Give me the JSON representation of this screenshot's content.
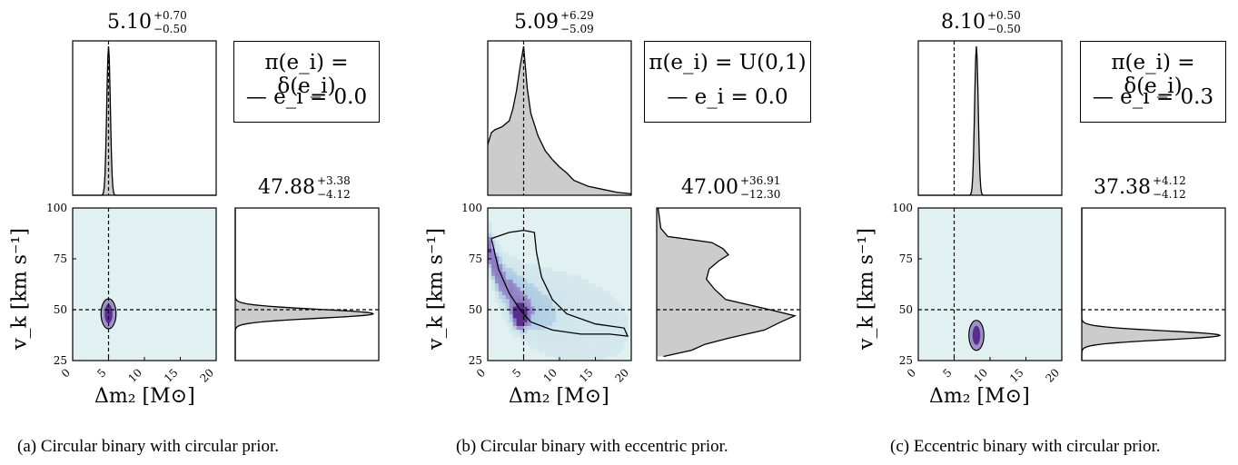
{
  "panels": [
    {
      "caption": "(a) Circular binary with circular prior.",
      "mass_stat": {
        "value": "5.10",
        "plus": "+0.70",
        "minus": "−0.50"
      },
      "vel_stat": {
        "value": "47.88",
        "plus": "+3.38",
        "minus": "−4.12"
      },
      "legend": {
        "prior": "π(e_i) = δ(e_i)",
        "ecc": "— e_i = 0.0"
      },
      "xlabel": "Δm₂ [M⊙]",
      "ylabel": "v_k [km s⁻¹]"
    },
    {
      "caption": "(b) Circular binary with eccentric prior.",
      "mass_stat": {
        "value": "5.09",
        "plus": "+6.29",
        "minus": "−5.09"
      },
      "vel_stat": {
        "value": "47.00",
        "plus": "+36.91",
        "minus": "−12.30"
      },
      "legend": {
        "prior": "π(e_i) = U(0,1)",
        "ecc": "— e_i = 0.0"
      },
      "xlabel": "Δm₂ [M⊙]",
      "ylabel": "v_k [km s⁻¹]"
    },
    {
      "caption": "(c) Eccentric binary with circular prior.",
      "mass_stat": {
        "value": "8.10",
        "plus": "+0.50",
        "minus": "−0.50"
      },
      "vel_stat": {
        "value": "37.38",
        "plus": "+4.12",
        "minus": "−4.12"
      },
      "legend": {
        "prior": "π(e_i) = δ(e_i)",
        "ecc": "— e_i = 0.3"
      },
      "xlabel": "Δm₂ [M⊙]",
      "ylabel": "v_k [km s⁻¹]"
    }
  ],
  "chart_data": [
    {
      "type": "heatmap",
      "panel": "a",
      "xlim": [
        0,
        20
      ],
      "ylim": [
        25,
        100
      ],
      "xticks": [
        "0",
        "5",
        "10",
        "15",
        "20"
      ],
      "yticks": [
        "25",
        "50",
        "75",
        "100"
      ],
      "truth": {
        "mass": 5,
        "velocity": 50
      },
      "mass_marginal": {
        "mean": 5.0,
        "sigma": 0.25
      },
      "vel_marginal": {
        "mean": 48,
        "sigma": 2.2
      },
      "blob": {
        "mass": 5.0,
        "velocity": 48,
        "mass_sigma": 0.3,
        "vel_sigma": 2.6
      },
      "colors": {
        "background": "#e1f0f0",
        "fill": "#cccccc",
        "blob": "#5a2c8c"
      }
    },
    {
      "type": "heatmap",
      "panel": "b",
      "xlim": [
        0,
        20
      ],
      "ylim": [
        25,
        100
      ],
      "xticks": [
        "0",
        "5",
        "10",
        "15",
        "20"
      ],
      "yticks": [
        "25",
        "50",
        "75",
        "100"
      ],
      "truth": {
        "mass": 5,
        "velocity": 50
      },
      "mass_marginal": {
        "x": [
          0,
          0.5,
          1,
          2,
          3,
          3.5,
          4,
          4.5,
          5,
          5.5,
          6,
          7,
          8,
          9,
          10,
          11,
          12,
          14,
          16,
          18,
          20
        ],
        "density": [
          0.34,
          0.42,
          0.44,
          0.46,
          0.5,
          0.58,
          0.7,
          0.86,
          1.0,
          0.72,
          0.55,
          0.4,
          0.3,
          0.24,
          0.19,
          0.15,
          0.1,
          0.06,
          0.04,
          0.02,
          0.01
        ]
      },
      "vel_marginal": {
        "v": [
          27,
          30,
          33,
          36,
          40,
          44,
          47,
          50,
          55,
          60,
          65,
          70,
          74,
          77,
          80,
          83,
          86,
          90,
          95,
          100
        ],
        "density": [
          0.05,
          0.25,
          0.35,
          0.52,
          0.78,
          0.9,
          1.0,
          0.82,
          0.5,
          0.42,
          0.36,
          0.38,
          0.45,
          0.52,
          0.48,
          0.4,
          0.08,
          0.03,
          0.02,
          0.01
        ]
      },
      "colors": {
        "background": "#e1f0f0",
        "fill": "#cccccc",
        "blob": "#5a2c8c"
      }
    },
    {
      "type": "heatmap",
      "panel": "c",
      "xlim": [
        0,
        20
      ],
      "ylim": [
        25,
        100
      ],
      "xticks": [
        "0",
        "5",
        "10",
        "15",
        "20"
      ],
      "yticks": [
        "25",
        "50",
        "75",
        "100"
      ],
      "truth": {
        "mass": 5,
        "velocity": 50
      },
      "mass_marginal": {
        "mean": 8.1,
        "sigma": 0.25
      },
      "vel_marginal": {
        "mean": 37.4,
        "sigma": 2.2
      },
      "blob": {
        "mass": 8.1,
        "velocity": 37.4,
        "mass_sigma": 0.3,
        "vel_sigma": 2.6
      },
      "colors": {
        "background": "#e1f0f0",
        "fill": "#cccccc",
        "blob": "#5a2c8c"
      }
    }
  ]
}
